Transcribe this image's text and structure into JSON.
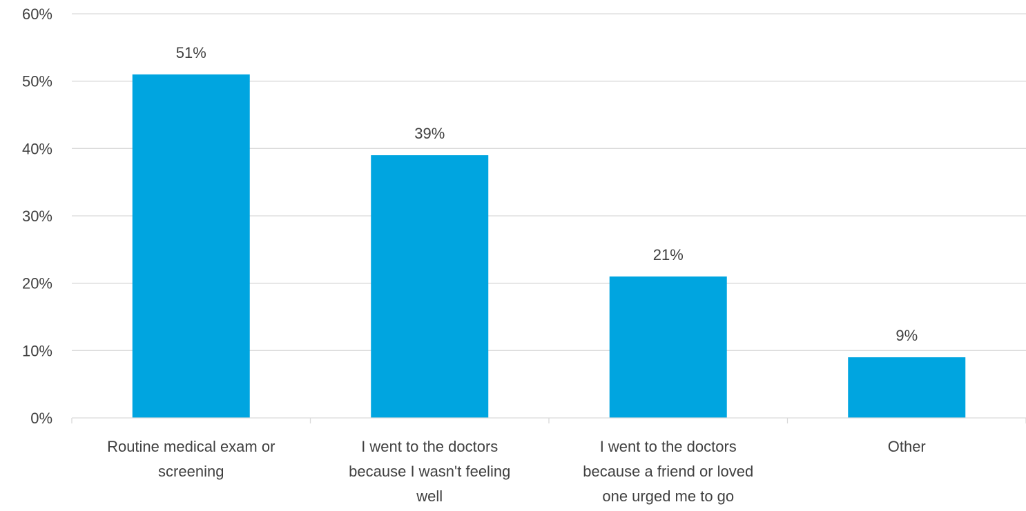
{
  "chart_data": {
    "type": "bar",
    "categories": [
      [
        "Routine medical exam or",
        "screening"
      ],
      [
        "I went to the doctors",
        "because I wasn't feeling",
        "well"
      ],
      [
        "I went to the doctors",
        "because a friend or loved",
        "one urged me to go"
      ],
      [
        "Other"
      ]
    ],
    "values": [
      51,
      39,
      21,
      9
    ],
    "data_labels": [
      "51%",
      "39%",
      "21%",
      "9%"
    ],
    "ylim": [
      0,
      60
    ],
    "yticks": [
      0,
      10,
      20,
      30,
      40,
      50,
      60
    ],
    "ytick_labels": [
      "0%",
      "10%",
      "20%",
      "30%",
      "40%",
      "50%",
      "60%"
    ],
    "title": "",
    "xlabel": "",
    "ylabel": "",
    "grid": true,
    "legend": "none",
    "bar_color": "#00a5e0"
  }
}
